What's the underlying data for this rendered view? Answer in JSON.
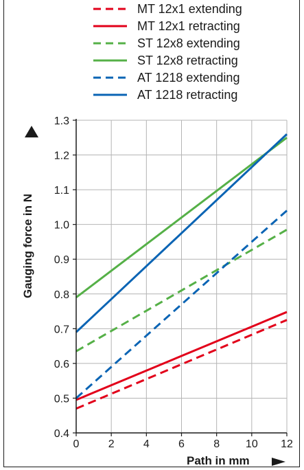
{
  "chart_data": {
    "type": "line",
    "xlabel": "Path in mm",
    "ylabel": "Gauging force in N",
    "xlim": [
      0,
      12
    ],
    "ylim": [
      0.4,
      1.3
    ],
    "x_ticks": [
      "0",
      "2",
      "4",
      "6",
      "8",
      "10",
      "12"
    ],
    "y_ticks": [
      "0.4",
      "0.5",
      "0.6",
      "0.7",
      "0.8",
      "0.9",
      "1.0",
      "1.1",
      "1.2",
      "1.3"
    ],
    "grid": true,
    "legend_position": "top",
    "series": [
      {
        "name": "MT 12x1 extending",
        "color": "#e2001a",
        "dash": true,
        "x": [
          0,
          12
        ],
        "y": [
          0.47,
          0.725
        ]
      },
      {
        "name": "MT 12x1 retracting",
        "color": "#e2001a",
        "dash": false,
        "x": [
          0,
          12
        ],
        "y": [
          0.495,
          0.748
        ]
      },
      {
        "name": "ST 12x8 extending",
        "color": "#55b047",
        "dash": true,
        "x": [
          0,
          12
        ],
        "y": [
          0.635,
          0.985
        ]
      },
      {
        "name": "ST 12x8 retracting",
        "color": "#55b047",
        "dash": false,
        "x": [
          0,
          12
        ],
        "y": [
          0.79,
          1.25
        ]
      },
      {
        "name": "AT 1218 extending",
        "color": "#0a64b4",
        "dash": true,
        "x": [
          0,
          12
        ],
        "y": [
          0.5,
          1.04
        ]
      },
      {
        "name": "AT 1218 retracting",
        "color": "#0a64b4",
        "dash": false,
        "x": [
          0,
          12
        ],
        "y": [
          0.69,
          1.26
        ]
      }
    ]
  }
}
